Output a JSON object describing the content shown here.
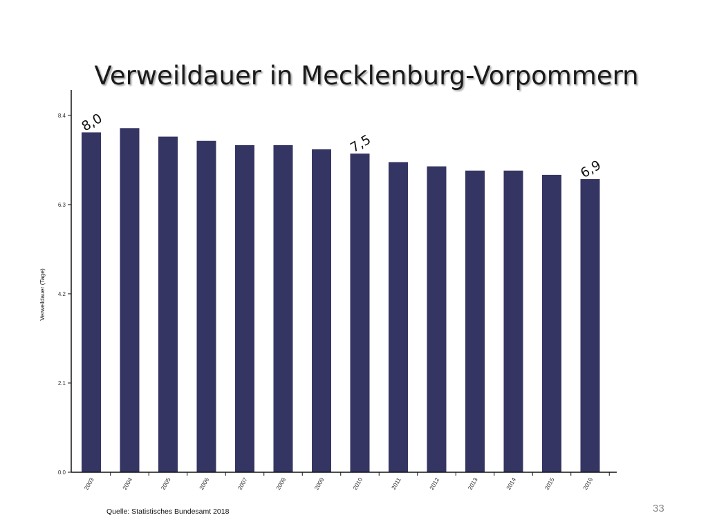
{
  "chart_data": {
    "type": "bar",
    "title": "Verweildauer in Mecklenburg-Vorpommern",
    "ylabel": "Verweildauer (Tage)",
    "xlabel": "",
    "categories": [
      "2003",
      "2004",
      "2005",
      "2006",
      "2007",
      "2008",
      "2009",
      "2010",
      "2011",
      "2012",
      "2013",
      "2014",
      "2015",
      "2016"
    ],
    "values": [
      8.0,
      8.1,
      7.9,
      7.8,
      7.7,
      7.7,
      7.6,
      7.5,
      7.3,
      7.2,
      7.1,
      7.1,
      7.0,
      6.9
    ],
    "ylim": [
      0,
      9.0
    ],
    "yticks": [
      0.0,
      2.1,
      4.2,
      6.3,
      8.4
    ],
    "ytick_labels": [
      "0.0",
      "2.1",
      "4.2",
      "6.3",
      "8.4"
    ],
    "annotations": [
      {
        "category": "2003",
        "text": "8,0"
      },
      {
        "category": "2010",
        "text": "7,5"
      },
      {
        "category": "2016",
        "text": "6,9"
      }
    ],
    "bar_color": "#353564",
    "grid": false,
    "legend": "none"
  },
  "source": "Quelle: Statistisches Bundesamt 2018",
  "page_number": "33"
}
